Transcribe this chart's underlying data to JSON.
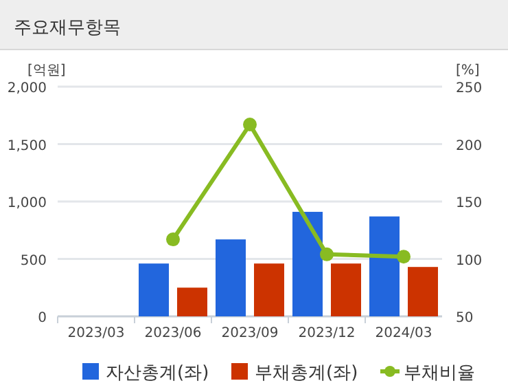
{
  "chart_data": {
    "type": "bar",
    "title": "주요재무항목",
    "categories": [
      "2023/03",
      "2023/06",
      "2023/09",
      "2023/12",
      "2024/03"
    ],
    "series": [
      {
        "name": "자산총계(좌)",
        "color": "#2266dd",
        "values": [
          null,
          460,
          670,
          910,
          870
        ]
      },
      {
        "name": "부채총계(좌)",
        "color": "#cc3300",
        "values": [
          null,
          250,
          460,
          460,
          430
        ]
      },
      {
        "name": "부채비율",
        "type": "line",
        "axis": "y2",
        "color": "#88bb22",
        "marker": "circle",
        "values": [
          null,
          117,
          217,
          104,
          102
        ]
      }
    ],
    "ylabel": "[억원]",
    "y2label": "[%]",
    "ylim": [
      0,
      2000
    ],
    "yticks": [
      0,
      {
        "value": 500,
        "label": "500"
      },
      {
        "value": 1000,
        "label": "1,000"
      },
      {
        "value": 1500,
        "label": "1,500"
      },
      {
        "value": 2000,
        "label": "2,000"
      }
    ],
    "y2lim": [
      50,
      250
    ],
    "y2ticks": [
      50,
      100,
      150,
      200,
      250
    ],
    "grid": "y",
    "legend": "bottom"
  }
}
